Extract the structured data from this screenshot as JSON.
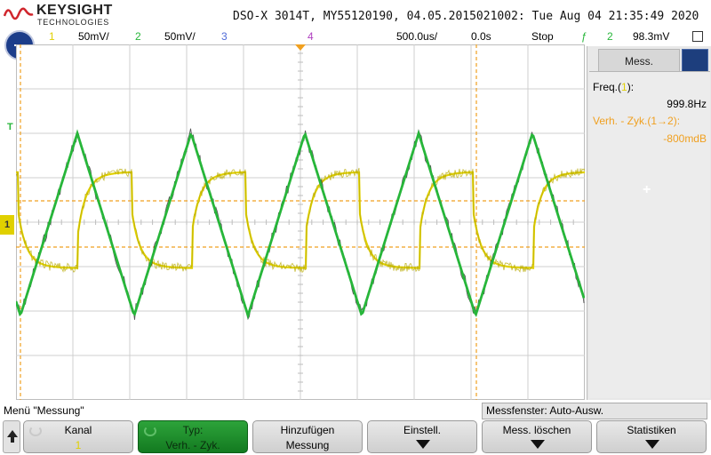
{
  "header": {
    "brand": "KEYSIGHT",
    "brand_sub": "TECHNOLOGIES",
    "title": "DSO-X 3014T, MY55120190, 04.05.2015021002: Tue Aug 04 21:35:49 2020"
  },
  "channels": {
    "ch1_num": "1",
    "ch1_scale": "50mV/",
    "ch2_num": "2",
    "ch2_scale": "50mV/",
    "ch3_num": "3",
    "ch4_num": "4",
    "timebase": "500.0us/",
    "delay": "0.0s",
    "run_state": "Stop",
    "trig_source": "2",
    "trig_level": "98.3mV"
  },
  "markers": {
    "trigger": "T",
    "ground": "1"
  },
  "side_panel": {
    "tab_label": "Mess.",
    "freq_label": "Freq.(",
    "freq_src": "1",
    "freq_close": "):",
    "freq_value": "999.8Hz",
    "duty_label": "Verh. - Zyk.(",
    "duty_src": "1→2",
    "duty_close": "):",
    "duty_value": "-800mdB",
    "add_symbol": "+"
  },
  "softkeys": {
    "menu_title": "Menü \"Messung\"",
    "msg_window": "Messfenster: Auto-Ausw.",
    "keys": [
      {
        "line1": "Kanal",
        "line2": "1"
      },
      {
        "line1": "Typ:",
        "line2": "Verh. - Zyk."
      },
      {
        "line1": "Hinzufügen",
        "line2": "Messung"
      },
      {
        "line1": "Einstell.",
        "line2": ""
      },
      {
        "line1": "Mess. löschen",
        "line2": ""
      },
      {
        "line1": "Statistiken",
        "line2": ""
      }
    ]
  },
  "colors": {
    "ch1": "#e0d000",
    "ch2": "#27b63a",
    "ch3": "#4e6ad8",
    "ch4": "#b040c0",
    "cursor": "#f0a020",
    "background": "#ffffff",
    "grid": "#cfcfcf"
  },
  "chart_data": {
    "type": "line",
    "x_unit": "s",
    "x_per_div": 0.0005,
    "divisions_x": 10,
    "divisions_y": 8,
    "frequency_hz": 999.8,
    "series": [
      {
        "name": "1",
        "shape": "square",
        "volts_per_div": 0.05
      },
      {
        "name": "2",
        "shape": "triangle",
        "volts_per_div": 0.05
      }
    ]
  }
}
